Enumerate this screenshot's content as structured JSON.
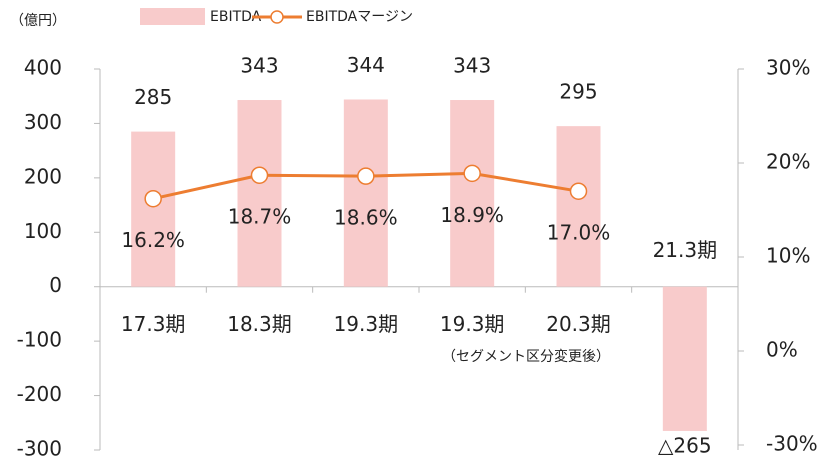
{
  "chart_data": {
    "type": "bar",
    "unit_label": "（億円）",
    "categories": [
      "17.3期",
      "18.3期",
      "19.3期",
      "19.3期",
      "20.3期",
      "21.3期"
    ],
    "annotation": "（セグメント区分変更後）",
    "series": [
      {
        "name": "EBITDA",
        "type": "bar",
        "color": "#f8cbcb",
        "values": [
          285,
          343,
          344,
          343,
          295,
          -265
        ],
        "value_labels": [
          "285",
          "343",
          "344",
          "343",
          "295",
          "△265"
        ]
      },
      {
        "name": "EBITDAマージン",
        "type": "line",
        "axis": "y2",
        "color": "#ed7d31",
        "values": [
          16.2,
          18.7,
          18.6,
          18.9,
          17.0,
          null
        ],
        "value_labels": [
          "16.2%",
          "18.7%",
          "18.6%",
          "18.9%",
          "17.0%",
          null
        ]
      }
    ],
    "ylim": [
      -300,
      400
    ],
    "yticks": [
      -300,
      -200,
      -100,
      0,
      100,
      200,
      300,
      400
    ],
    "y2lim": [
      -30,
      30
    ],
    "y2ticks": [
      {
        "value": -30,
        "label": "-30%"
      },
      {
        "value": 0,
        "label": "0%"
      },
      {
        "value": 10,
        "label": "10%"
      },
      {
        "value": 20,
        "label": "20%"
      },
      {
        "value": 30,
        "label": "30%"
      }
    ]
  }
}
